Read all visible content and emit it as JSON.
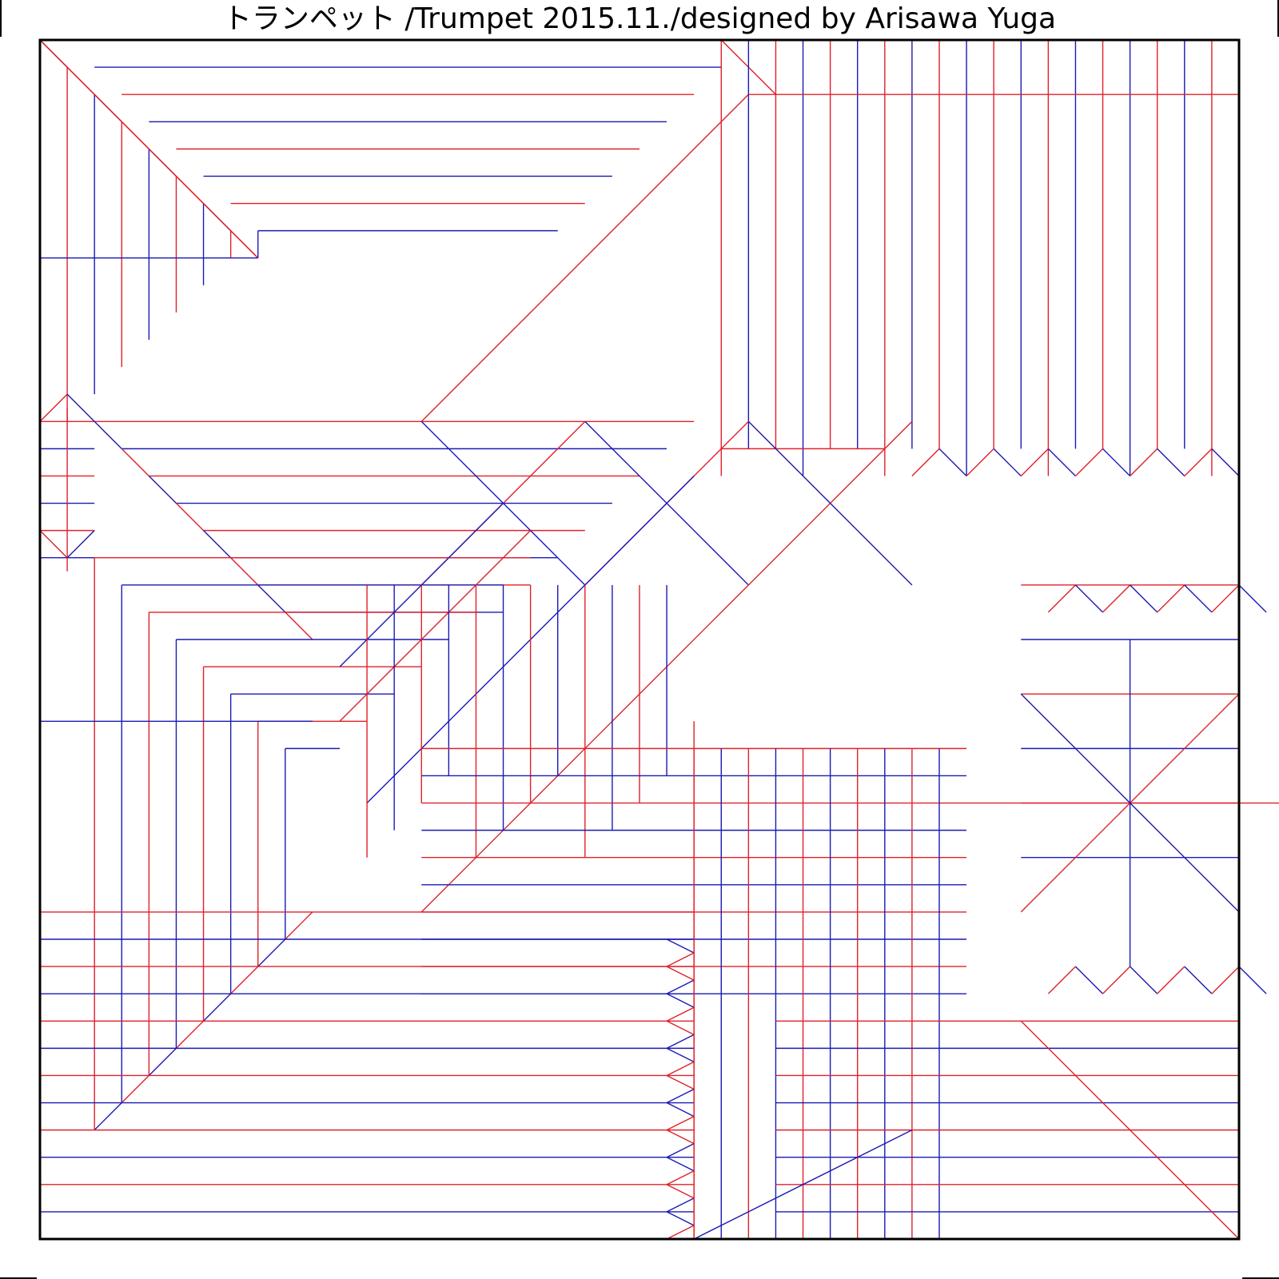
{
  "title": "トランペット /Trumpet  2015.11./designed by Arisawa Yuga",
  "colors": {
    "mountain": "#e0202a",
    "valley": "#1a1ab4",
    "border": "#000000",
    "background": "#ffffff"
  },
  "crease_pattern": {
    "grid_divisions": 44,
    "top_left_region": "nested square flap",
    "top_right_region": "vertical pleats",
    "bottom_left_region": "horizontal pleats",
    "bottom_right_region": "mixed pleats and flaps"
  }
}
